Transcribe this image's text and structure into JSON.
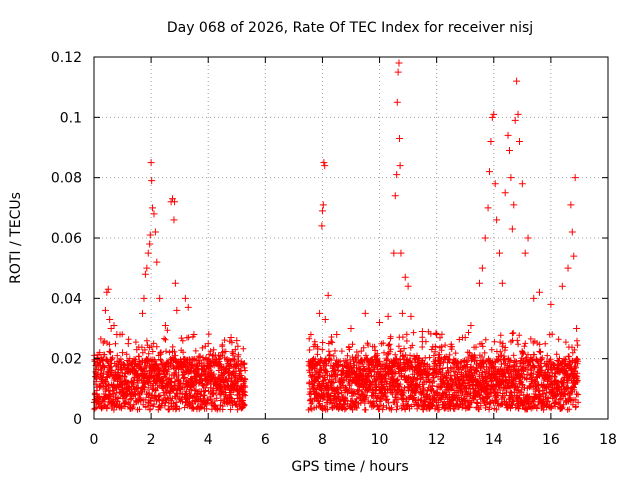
{
  "chart_data": {
    "type": "scatter",
    "title": "Day 068 of 2026, Rate Of TEC Index for receiver nisj",
    "xlabel": "GPS time / hours",
    "ylabel": "ROTI / TECUs",
    "xlim": [
      0,
      18
    ],
    "ylim": [
      0,
      0.12
    ],
    "xticks": [
      0,
      2,
      4,
      6,
      8,
      10,
      12,
      14,
      16,
      18
    ],
    "xtick_labels": [
      "0",
      "2",
      "4",
      "6",
      "8",
      "10",
      "12",
      "14",
      "16",
      "18"
    ],
    "yticks": [
      0,
      0.02,
      0.04,
      0.06,
      0.08,
      0.1,
      0.12
    ],
    "ytick_labels": [
      "0",
      "0.02",
      "0.04",
      "0.06",
      "0.08",
      "0.1",
      "0.12"
    ],
    "grid": true,
    "marker": "+",
    "color": "#ff0000",
    "gaps_hours": [
      [
        5.3,
        7.5
      ]
    ],
    "series": [
      {
        "name": "ROTI",
        "points": [
          [
            0.1,
            0.018
          ],
          [
            0.2,
            0.022
          ],
          [
            0.3,
            0.013
          ],
          [
            0.4,
            0.036
          ],
          [
            0.45,
            0.042
          ],
          [
            0.5,
            0.043
          ],
          [
            0.55,
            0.033
          ],
          [
            0.6,
            0.03
          ],
          [
            0.7,
            0.031
          ],
          [
            0.8,
            0.028
          ],
          [
            1.0,
            0.022
          ],
          [
            1.2,
            0.025
          ],
          [
            1.5,
            0.023
          ],
          [
            1.7,
            0.035
          ],
          [
            1.75,
            0.04
          ],
          [
            1.8,
            0.048
          ],
          [
            1.85,
            0.05
          ],
          [
            1.9,
            0.055
          ],
          [
            1.95,
            0.058
          ],
          [
            1.97,
            0.061
          ],
          [
            2.0,
            0.085
          ],
          [
            2.02,
            0.079
          ],
          [
            2.05,
            0.07
          ],
          [
            2.1,
            0.068
          ],
          [
            2.15,
            0.062
          ],
          [
            2.2,
            0.052
          ],
          [
            2.3,
            0.04
          ],
          [
            2.5,
            0.031
          ],
          [
            2.7,
            0.072
          ],
          [
            2.75,
            0.073
          ],
          [
            2.8,
            0.066
          ],
          [
            2.82,
            0.072
          ],
          [
            2.85,
            0.045
          ],
          [
            2.9,
            0.036
          ],
          [
            3.2,
            0.04
          ],
          [
            3.3,
            0.037
          ],
          [
            3.5,
            0.028
          ],
          [
            4.0,
            0.025
          ],
          [
            4.5,
            0.022
          ],
          [
            4.8,
            0.027
          ],
          [
            5.0,
            0.026
          ],
          [
            7.7,
            0.024
          ],
          [
            7.9,
            0.035
          ],
          [
            7.98,
            0.064
          ],
          [
            8.0,
            0.069
          ],
          [
            8.03,
            0.071
          ],
          [
            8.05,
            0.085
          ],
          [
            8.08,
            0.084
          ],
          [
            8.1,
            0.033
          ],
          [
            8.2,
            0.041
          ],
          [
            8.5,
            0.028
          ],
          [
            9.0,
            0.03
          ],
          [
            9.5,
            0.035
          ],
          [
            10.0,
            0.032
          ],
          [
            10.3,
            0.034
          ],
          [
            10.5,
            0.055
          ],
          [
            10.55,
            0.074
          ],
          [
            10.6,
            0.081
          ],
          [
            10.62,
            0.105
          ],
          [
            10.65,
            0.115
          ],
          [
            10.68,
            0.118
          ],
          [
            10.7,
            0.093
          ],
          [
            10.72,
            0.084
          ],
          [
            10.75,
            0.055
          ],
          [
            10.8,
            0.035
          ],
          [
            10.9,
            0.047
          ],
          [
            11.0,
            0.044
          ],
          [
            11.1,
            0.034
          ],
          [
            11.5,
            0.029
          ],
          [
            12.0,
            0.028
          ],
          [
            12.5,
            0.024
          ],
          [
            13.0,
            0.027
          ],
          [
            13.2,
            0.031
          ],
          [
            13.5,
            0.045
          ],
          [
            13.6,
            0.05
          ],
          [
            13.7,
            0.06
          ],
          [
            13.8,
            0.07
          ],
          [
            13.85,
            0.082
          ],
          [
            13.9,
            0.092
          ],
          [
            13.95,
            0.1
          ],
          [
            14.0,
            0.101
          ],
          [
            14.05,
            0.078
          ],
          [
            14.1,
            0.066
          ],
          [
            14.2,
            0.055
          ],
          [
            14.3,
            0.045
          ],
          [
            14.4,
            0.075
          ],
          [
            14.5,
            0.094
          ],
          [
            14.55,
            0.089
          ],
          [
            14.6,
            0.08
          ],
          [
            14.65,
            0.063
          ],
          [
            14.7,
            0.071
          ],
          [
            14.75,
            0.099
          ],
          [
            14.8,
            0.112
          ],
          [
            14.85,
            0.101
          ],
          [
            14.9,
            0.092
          ],
          [
            15.0,
            0.078
          ],
          [
            15.1,
            0.055
          ],
          [
            15.2,
            0.06
          ],
          [
            15.4,
            0.04
          ],
          [
            15.6,
            0.042
          ],
          [
            16.0,
            0.038
          ],
          [
            16.4,
            0.044
          ],
          [
            16.6,
            0.05
          ],
          [
            16.7,
            0.071
          ],
          [
            16.75,
            0.062
          ],
          [
            16.8,
            0.054
          ],
          [
            16.85,
            0.08
          ],
          [
            16.9,
            0.03
          ]
        ]
      }
    ]
  }
}
